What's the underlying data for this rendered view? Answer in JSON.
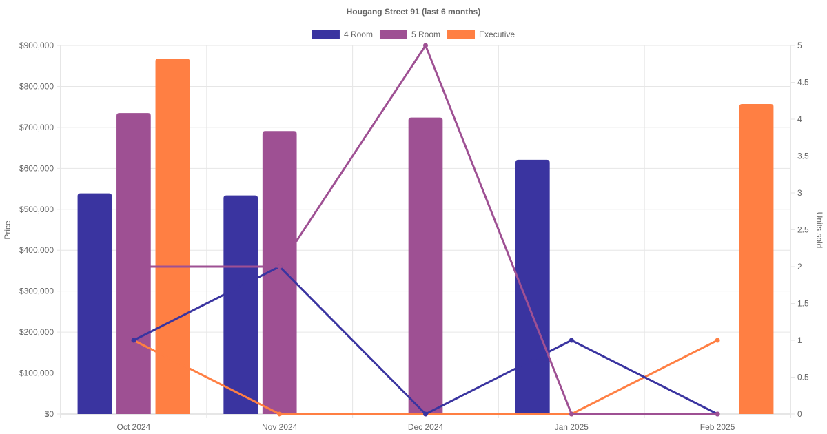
{
  "chart_data": {
    "type": "bar",
    "title": "Hougang Street 91 (last 6 months)",
    "categories": [
      "Oct 2024",
      "Nov 2024",
      "Dec 2024",
      "Jan 2025",
      "Feb 2025"
    ],
    "y_left": {
      "label": "Price",
      "ylim": [
        0,
        900000
      ],
      "ticks": [
        "$0",
        "$100,000",
        "$200,000",
        "$300,000",
        "$400,000",
        "$500,000",
        "$600,000",
        "$700,000",
        "$800,000",
        "$900,000"
      ]
    },
    "y_right": {
      "label": "Units sold",
      "ylim": [
        0,
        5
      ],
      "ticks": [
        "0",
        "0.5",
        "1",
        "1.5",
        "2",
        "2.5",
        "3",
        "3.5",
        "4",
        "4.5",
        "5"
      ]
    },
    "grid": true,
    "legend_position": "top-center",
    "series": [
      {
        "name": "4 Room",
        "color": "#3a34a0",
        "price": [
          539000,
          534000,
          null,
          621000,
          null
        ],
        "units_sold": [
          1,
          2,
          0,
          1,
          0
        ]
      },
      {
        "name": "5 Room",
        "color": "#9e5093",
        "price": [
          735000,
          691000,
          724000,
          null,
          null
        ],
        "units_sold": [
          2,
          2,
          5,
          0,
          0
        ]
      },
      {
        "name": "Executive",
        "color": "#ff7f43",
        "price": [
          868000,
          null,
          null,
          null,
          757000
        ],
        "units_sold": [
          1,
          0,
          0,
          0,
          1
        ]
      }
    ]
  }
}
